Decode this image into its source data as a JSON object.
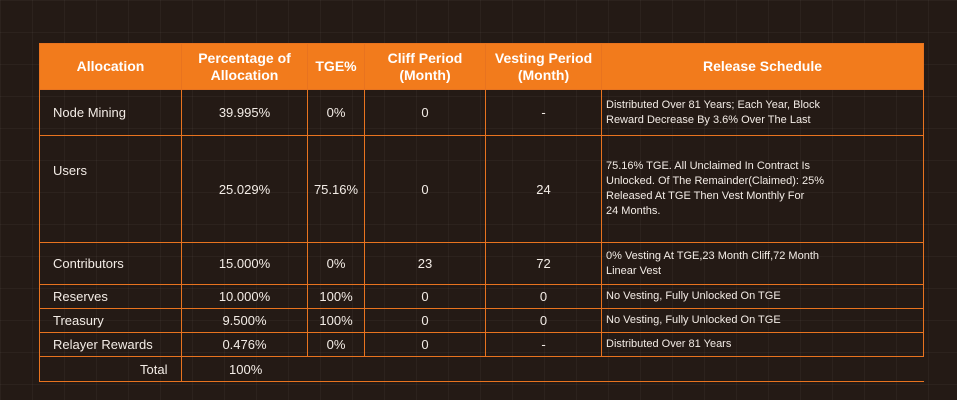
{
  "table": {
    "headers": [
      {
        "line1": "Allocation",
        "line2": ""
      },
      {
        "line1": "Percentage of",
        "line2": "Allocation"
      },
      {
        "line1": "TGE%",
        "line2": ""
      },
      {
        "line1": "Cliff Period",
        "line2": "(Month)"
      },
      {
        "line1": "Vesting Period",
        "line2": "(Month)"
      },
      {
        "line1": "Release Schedule",
        "line2": ""
      }
    ],
    "rows": [
      {
        "allocation": "Node Mining",
        "percentage": "39.995%",
        "tge": "0%",
        "cliff": "0",
        "vesting": "-",
        "schedule": [
          "Distributed Over 81 Years; Each Year, Block",
          "Reward Decrease By 3.6% Over The Last"
        ]
      },
      {
        "allocation": "Users",
        "percentage": "25.029%",
        "tge": "75.16%",
        "cliff": "0",
        "vesting": "24",
        "schedule": [
          "75.16% TGE. All Unclaimed In Contract Is",
          "Unlocked. Of The Remainder(Claimed): 25%",
          "Released At TGE Then Vest Monthly For",
          "24 Months."
        ]
      },
      {
        "allocation": "Contributors",
        "percentage": "15.000%",
        "tge": "0%",
        "cliff": "23",
        "vesting": "72",
        "schedule": [
          "0% Vesting At TGE,23 Month Cliff,72 Month",
          "Linear Vest"
        ]
      },
      {
        "allocation": "Reserves",
        "percentage": "10.000%",
        "tge": "100%",
        "cliff": "0",
        "vesting": "0",
        "schedule": [
          "No Vesting, Fully Unlocked On TGE"
        ]
      },
      {
        "allocation": "Treasury",
        "percentage": "9.500%",
        "tge": "100%",
        "cliff": "0",
        "vesting": "0",
        "schedule": [
          "No Vesting, Fully Unlocked On TGE"
        ]
      },
      {
        "allocation": "Relayer Rewards",
        "percentage": "0.476%",
        "tge": "0%",
        "cliff": "0",
        "vesting": "-",
        "schedule": [
          "Distributed Over 81 Years"
        ]
      }
    ],
    "total": {
      "label": "Total",
      "percentage": "100%"
    }
  },
  "colors": {
    "background": "#241a15",
    "accent": "#f27b1c",
    "border": "#e8731f",
    "text": "#f3ece6"
  }
}
